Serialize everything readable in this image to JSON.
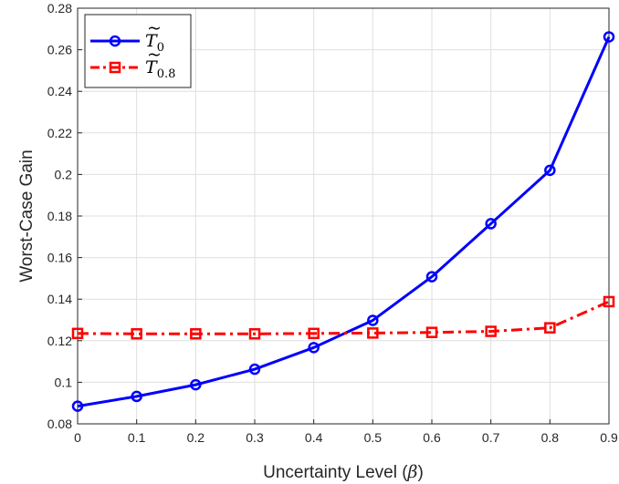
{
  "chart_data": {
    "type": "line",
    "xlabel": "Uncertainty Level (",
    "xlabel_symbol": "β",
    "xlabel_close": ")",
    "ylabel": "Worst-Case Gain",
    "xlim": [
      0,
      0.9
    ],
    "ylim": [
      0.08,
      0.28
    ],
    "x_ticks": [
      0,
      0.1,
      0.2,
      0.3,
      0.4,
      0.5,
      0.6,
      0.7,
      0.8,
      0.9
    ],
    "x_tick_labels": [
      "0",
      "0.1",
      "0.2",
      "0.3",
      "0.4",
      "0.5",
      "0.6",
      "0.7",
      "0.8",
      "0.9"
    ],
    "y_ticks": [
      0.08,
      0.1,
      0.12,
      0.14,
      0.16,
      0.18,
      0.2,
      0.22,
      0.24,
      0.26,
      0.28
    ],
    "y_tick_labels": [
      "0.08",
      "0.1",
      "0.12",
      "0.14",
      "0.16",
      "0.18",
      "0.2",
      "0.22",
      "0.24",
      "0.26",
      "0.28"
    ],
    "grid": true,
    "legend_position": "top-left",
    "x": [
      0,
      0.1,
      0.2,
      0.3,
      0.4,
      0.5,
      0.6,
      0.7,
      0.8,
      0.9
    ],
    "series": [
      {
        "name": "T",
        "name_subscript": "0",
        "color": "#0000ff",
        "line_style": "solid",
        "marker": "circle",
        "values": [
          0.0885,
          0.0932,
          0.0988,
          0.1063,
          0.1167,
          0.1298,
          0.1508,
          0.1763,
          0.202,
          0.2662
        ]
      },
      {
        "name": "T",
        "name_subscript": "0.8",
        "color": "#ff0000",
        "line_style": "dash-dot",
        "marker": "square",
        "values": [
          0.1235,
          0.1233,
          0.1233,
          0.1233,
          0.1235,
          0.1237,
          0.124,
          0.1245,
          0.1262,
          0.1388
        ]
      }
    ]
  }
}
